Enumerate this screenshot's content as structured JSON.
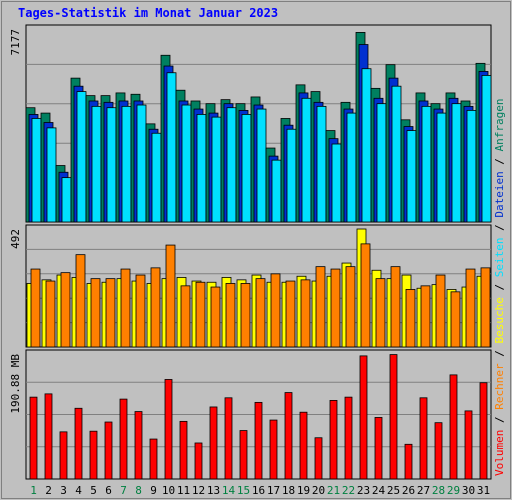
{
  "title": "Tages-Statistik im Monat Januar 2023",
  "colors": {
    "background": "#c0c0c0",
    "plot_bg": "#c0c0c0",
    "grid": "#808080",
    "anfragen": "#008060",
    "dateien": "#0030d0",
    "seiten": "#00e0ff",
    "besuche": "#ffff00",
    "rechner": "#ff8000",
    "volumen": "#ff0000",
    "weekday_label": "#000000",
    "weekend_label": "#008040",
    "title": "#0000ff"
  },
  "legend": {
    "left_panel": [
      "Volumen",
      "Rechner",
      "Besuche",
      "Seiten",
      "Dateien",
      "Anfragen"
    ],
    "separator": "/"
  },
  "chart_data": [
    {
      "type": "bar",
      "panel": "top",
      "ylabel_max": "7177",
      "ylim": [
        0,
        7177
      ],
      "categories": [
        "1",
        "2",
        "3",
        "4",
        "5",
        "6",
        "7",
        "8",
        "9",
        "10",
        "11",
        "12",
        "13",
        "14",
        "15",
        "16",
        "17",
        "18",
        "19",
        "20",
        "21",
        "22",
        "23",
        "24",
        "25",
        "26",
        "27",
        "28",
        "29",
        "30",
        "31"
      ],
      "weekend_days": [
        1,
        7,
        8,
        14,
        15,
        21,
        22,
        28,
        29
      ],
      "series": [
        {
          "name": "Anfragen",
          "values": [
            4250,
            4050,
            2100,
            5350,
            4700,
            4700,
            4800,
            4750,
            3650,
            6200,
            4900,
            4500,
            4400,
            4550,
            4400,
            4650,
            2750,
            3850,
            5100,
            4850,
            3400,
            4450,
            7050,
            4970,
            5850,
            3800,
            4800,
            4400,
            4800,
            4500,
            5900
          ]
        },
        {
          "name": "Dateien",
          "values": [
            4000,
            3700,
            1850,
            5050,
            4500,
            4450,
            4500,
            4500,
            3450,
            5800,
            4500,
            4200,
            4050,
            4400,
            4150,
            4350,
            2450,
            3600,
            4800,
            4450,
            3100,
            4200,
            6600,
            4600,
            5350,
            3550,
            4500,
            4200,
            4600,
            4300,
            5600
          ]
        },
        {
          "name": "Seiten",
          "values": [
            3850,
            3500,
            1650,
            4850,
            4300,
            4250,
            4300,
            4350,
            3300,
            5550,
            4350,
            4000,
            3900,
            4250,
            4000,
            4200,
            2300,
            3450,
            4600,
            4300,
            2900,
            4050,
            5700,
            4400,
            5050,
            3400,
            4300,
            4050,
            4400,
            4150,
            5450
          ]
        }
      ]
    },
    {
      "type": "bar",
      "panel": "middle",
      "ylabel_max": "492",
      "ylim": [
        0,
        492
      ],
      "categories": [
        "1",
        "2",
        "3",
        "4",
        "5",
        "6",
        "7",
        "8",
        "9",
        "10",
        "11",
        "12",
        "13",
        "14",
        "15",
        "16",
        "17",
        "18",
        "19",
        "20",
        "21",
        "22",
        "23",
        "24",
        "25",
        "26",
        "27",
        "28",
        "29",
        "30",
        "31"
      ],
      "series": [
        {
          "name": "Besuche",
          "values": [
            265,
            280,
            300,
            290,
            265,
            270,
            285,
            275,
            265,
            285,
            290,
            275,
            270,
            290,
            280,
            300,
            270,
            270,
            295,
            275,
            295,
            350,
            492,
            320,
            285,
            300,
            245,
            260,
            240,
            250,
            295
          ]
        },
        {
          "name": "Rechner",
          "values": [
            325,
            275,
            310,
            385,
            285,
            285,
            325,
            300,
            330,
            425,
            255,
            270,
            250,
            265,
            265,
            285,
            305,
            275,
            280,
            335,
            325,
            335,
            430,
            285,
            335,
            240,
            255,
            300,
            230,
            325,
            330
          ]
        }
      ]
    },
    {
      "type": "bar",
      "panel": "bottom",
      "ylabel_max": "190.88 MB",
      "ylim": [
        0,
        190.88
      ],
      "categories": [
        "1",
        "2",
        "3",
        "4",
        "5",
        "6",
        "7",
        "8",
        "9",
        "10",
        "11",
        "12",
        "13",
        "14",
        "15",
        "16",
        "17",
        "18",
        "19",
        "20",
        "21",
        "22",
        "23",
        "24",
        "25",
        "26",
        "27",
        "28",
        "29",
        "30",
        "31"
      ],
      "series": [
        {
          "name": "Volumen",
          "values": [
            125,
            130,
            72,
            108,
            73,
            87,
            122,
            103,
            61,
            152,
            88,
            55,
            110,
            124,
            74,
            117,
            90,
            132,
            102,
            63,
            120,
            125,
            188,
            94,
            190,
            53,
            124,
            86,
            159,
            104,
            147
          ]
        }
      ]
    }
  ]
}
